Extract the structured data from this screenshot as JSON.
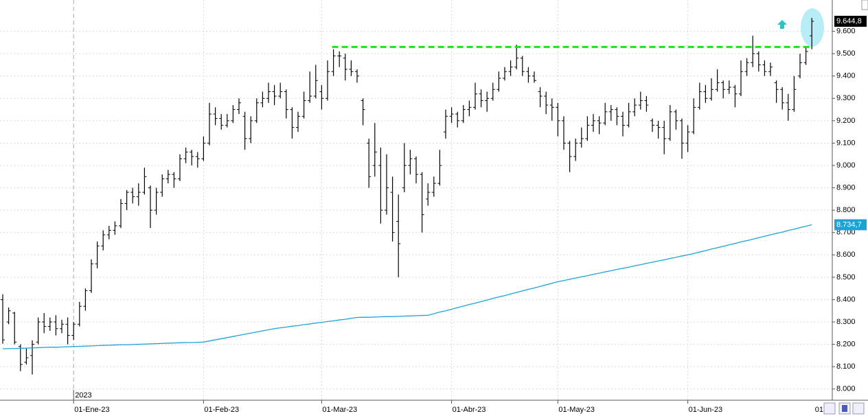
{
  "chart_data": {
    "type": "ohlc",
    "categories": [
      null,
      null,
      null,
      null,
      null,
      null,
      null,
      null,
      null,
      null,
      null,
      null,
      "01-Ene-23",
      null,
      null,
      null,
      null,
      null,
      null,
      null,
      null,
      null,
      null,
      null,
      null,
      null,
      null,
      null,
      null,
      null,
      null,
      null,
      null,
      null,
      "01-Feb-23",
      null,
      null,
      null,
      null,
      null,
      null,
      null,
      null,
      null,
      null,
      null,
      null,
      null,
      null,
      null,
      null,
      null,
      null,
      null,
      "01-Mar-23",
      null,
      null,
      null,
      null,
      null,
      null,
      null,
      null,
      null,
      null,
      null,
      null,
      null,
      null,
      null,
      null,
      null,
      null,
      null,
      null,
      null,
      "01-Abr-23",
      null,
      null,
      null,
      null,
      null,
      null,
      null,
      null,
      null,
      null,
      null,
      null,
      null,
      null,
      null,
      null,
      null,
      "01-May-23",
      null,
      null,
      null,
      null,
      null,
      null,
      null,
      null,
      null,
      null,
      null,
      null,
      null,
      null,
      null,
      null,
      null,
      null,
      null,
      null,
      null,
      "01-Jun-23",
      null,
      null,
      null,
      null,
      null,
      null,
      null,
      null,
      null,
      null,
      null,
      null,
      null,
      null,
      null,
      null,
      null,
      null,
      null,
      null,
      null
    ],
    "series": [
      {
        "type": "ohlc",
        "color": "#000000",
        "last_label": "9.644,8",
        "values": [
          [
            8400,
            8424,
            8203,
            8220
          ],
          [
            8300,
            8365,
            8290,
            8350
          ],
          [
            8340,
            8345,
            8200,
            8210
          ],
          [
            8190,
            8200,
            8080,
            8110
          ],
          [
            8120,
            8185,
            8110,
            8140
          ],
          [
            8150,
            8218,
            8065,
            8200
          ],
          [
            8210,
            8320,
            8200,
            8300
          ],
          [
            8300,
            8340,
            8250,
            8280
          ],
          [
            8280,
            8320,
            8260,
            8300
          ],
          [
            8300,
            8330,
            8240,
            8270
          ],
          [
            8270,
            8310,
            8250,
            8290
          ],
          [
            8290,
            8320,
            8200,
            8240
          ],
          [
            8240,
            8300,
            8220,
            8290
          ],
          [
            8290,
            8390,
            8280,
            8370
          ],
          [
            8370,
            8450,
            8350,
            8440
          ],
          [
            8440,
            8580,
            8430,
            8560
          ],
          [
            8560,
            8660,
            8540,
            8640
          ],
          [
            8640,
            8710,
            8620,
            8690
          ],
          [
            8690,
            8730,
            8670,
            8710
          ],
          [
            8710,
            8750,
            8690,
            8730
          ],
          [
            8730,
            8850,
            8720,
            8830
          ],
          [
            8830,
            8890,
            8800,
            8880
          ],
          [
            8880,
            8900,
            8830,
            8860
          ],
          [
            8860,
            8920,
            8820,
            8880
          ],
          [
            8880,
            8990,
            8870,
            8950
          ],
          [
            8900,
            8910,
            8720,
            8800
          ],
          [
            8800,
            8900,
            8780,
            8880
          ],
          [
            8880,
            8960,
            8860,
            8940
          ],
          [
            8940,
            8980,
            8920,
            8960
          ],
          [
            8960,
            8970,
            8900,
            8940
          ],
          [
            8940,
            9050,
            8930,
            9030
          ],
          [
            9030,
            9080,
            9010,
            9060
          ],
          [
            9060,
            9070,
            9000,
            9040
          ],
          [
            9040,
            9060,
            8990,
            9030
          ],
          [
            9030,
            9130,
            9020,
            9100
          ],
          [
            9100,
            9280,
            9090,
            9230
          ],
          [
            9230,
            9260,
            9180,
            9210
          ],
          [
            9210,
            9230,
            9160,
            9180
          ],
          [
            9180,
            9230,
            9170,
            9200
          ],
          [
            9200,
            9270,
            9190,
            9250
          ],
          [
            9250,
            9300,
            9230,
            9280
          ],
          [
            9220,
            9240,
            9070,
            9120
          ],
          [
            9120,
            9220,
            9100,
            9200
          ],
          [
            9200,
            9300,
            9190,
            9280
          ],
          [
            9280,
            9330,
            9260,
            9300
          ],
          [
            9300,
            9370,
            9280,
            9330
          ],
          [
            9330,
            9360,
            9270,
            9310
          ],
          [
            9310,
            9370,
            9300,
            9330
          ],
          [
            9330,
            9340,
            9210,
            9250
          ],
          [
            9250,
            9260,
            9120,
            9170
          ],
          [
            9170,
            9240,
            9150,
            9220
          ],
          [
            9220,
            9330,
            9210,
            9290
          ],
          [
            9290,
            9420,
            9280,
            9310
          ],
          [
            9310,
            9450,
            9300,
            9380
          ],
          [
            9330,
            9360,
            9250,
            9300
          ],
          [
            9300,
            9470,
            9290,
            9420
          ],
          [
            9420,
            9520,
            9400,
            9490
          ],
          [
            9490,
            9510,
            9440,
            9490
          ],
          [
            9480,
            9500,
            9380,
            9430
          ],
          [
            9430,
            9470,
            9400,
            9420
          ],
          [
            9420,
            9430,
            9370,
            9400
          ],
          [
            9290,
            9300,
            9180,
            9250
          ],
          [
            9100,
            9120,
            8900,
            8950
          ],
          [
            9000,
            9190,
            8950,
            9060
          ],
          [
            9000,
            9080,
            8740,
            8800
          ],
          [
            8800,
            9050,
            8780,
            8900
          ],
          [
            8880,
            8950,
            8660,
            8700
          ],
          [
            8750,
            8870,
            8500,
            8650
          ],
          [
            8900,
            9100,
            8880,
            9000
          ],
          [
            9000,
            9070,
            8960,
            9030
          ],
          [
            9030,
            9040,
            8920,
            8960
          ],
          [
            8960,
            8970,
            8700,
            8780
          ],
          [
            8850,
            8920,
            8820,
            8880
          ],
          [
            8880,
            8950,
            8860,
            8920
          ],
          [
            8920,
            9070,
            8910,
            9000
          ],
          [
            9150,
            9250,
            9120,
            9220
          ],
          [
            9220,
            9260,
            9190,
            9230
          ],
          [
            9230,
            9240,
            9170,
            9200
          ],
          [
            9200,
            9270,
            9190,
            9250
          ],
          [
            9250,
            9290,
            9220,
            9260
          ],
          [
            9260,
            9370,
            9250,
            9320
          ],
          [
            9320,
            9340,
            9260,
            9290
          ],
          [
            9290,
            9330,
            9240,
            9300
          ],
          [
            9300,
            9370,
            9290,
            9340
          ],
          [
            9340,
            9420,
            9330,
            9390
          ],
          [
            9390,
            9440,
            9380,
            9420
          ],
          [
            9420,
            9470,
            9400,
            9440
          ],
          [
            9440,
            9540,
            9430,
            9480
          ],
          [
            9480,
            9490,
            9400,
            9420
          ],
          [
            9420,
            9440,
            9370,
            9400
          ],
          [
            9400,
            9420,
            9370,
            9380
          ],
          [
            9330,
            9350,
            9260,
            9310
          ],
          [
            9310,
            9330,
            9230,
            9270
          ],
          [
            9270,
            9300,
            9200,
            9260
          ],
          [
            9260,
            9280,
            9130,
            9200
          ],
          [
            9200,
            9220,
            9070,
            9100
          ],
          [
            9100,
            9110,
            8970,
            9040
          ],
          [
            9040,
            9120,
            9020,
            9100
          ],
          [
            9100,
            9170,
            9080,
            9120
          ],
          [
            9120,
            9220,
            9110,
            9180
          ],
          [
            9180,
            9230,
            9150,
            9200
          ],
          [
            9200,
            9220,
            9140,
            9190
          ],
          [
            9190,
            9280,
            9180,
            9240
          ],
          [
            9240,
            9270,
            9200,
            9250
          ],
          [
            9250,
            9260,
            9180,
            9220
          ],
          [
            9220,
            9240,
            9130,
            9180
          ],
          [
            9180,
            9280,
            9170,
            9240
          ],
          [
            9240,
            9300,
            9220,
            9270
          ],
          [
            9270,
            9330,
            9250,
            9290
          ],
          [
            9290,
            9310,
            9240,
            9270
          ],
          [
            9200,
            9210,
            9150,
            9180
          ],
          [
            9180,
            9200,
            9120,
            9170
          ],
          [
            9170,
            9200,
            9050,
            9120
          ],
          [
            9120,
            9270,
            9110,
            9240
          ],
          [
            9240,
            9250,
            9160,
            9200
          ],
          [
            9200,
            9210,
            9030,
            9100
          ],
          [
            9100,
            9180,
            9060,
            9150
          ],
          [
            9150,
            9300,
            9140,
            9260
          ],
          [
            9260,
            9370,
            9250,
            9330
          ],
          [
            9330,
            9360,
            9280,
            9300
          ],
          [
            9300,
            9390,
            9290,
            9340
          ],
          [
            9340,
            9430,
            9330,
            9370
          ],
          [
            9370,
            9380,
            9300,
            9340
          ],
          [
            9340,
            9380,
            9320,
            9350
          ],
          [
            9350,
            9360,
            9260,
            9320
          ],
          [
            9320,
            9470,
            9310,
            9420
          ],
          [
            9420,
            9480,
            9400,
            9460
          ],
          [
            9460,
            9580,
            9440,
            9500
          ],
          [
            9500,
            9510,
            9420,
            9450
          ],
          [
            9450,
            9470,
            9400,
            9420
          ],
          [
            9420,
            9460,
            9400,
            9440
          ],
          [
            9370,
            9380,
            9280,
            9340
          ],
          [
            9340,
            9350,
            9250,
            9280
          ],
          [
            9280,
            9320,
            9200,
            9250
          ],
          [
            9250,
            9400,
            9240,
            9340
          ],
          [
            9400,
            9500,
            9390,
            9460
          ],
          [
            9460,
            9530,
            9450,
            9510
          ],
          [
            9580,
            9660,
            9520,
            9644.8
          ]
        ]
      },
      {
        "type": "line",
        "color": "#1ba3d6",
        "last_label": "8.734,7",
        "values": [
          8180,
          8181,
          8181,
          8182,
          8183,
          8184,
          8185,
          8186,
          8187,
          8187,
          8188,
          8189,
          8190,
          8191,
          8192,
          8193,
          8194,
          8195,
          8196,
          8197,
          8198,
          8198,
          8199,
          8200,
          8201,
          8202,
          8203,
          8204,
          8205,
          8206,
          8207,
          8208,
          8208,
          8209,
          8210,
          8215,
          8220,
          8225,
          8230,
          8235,
          8240,
          8245,
          8250,
          8255,
          8260,
          8265,
          8270,
          8274,
          8277,
          8281,
          8284,
          8288,
          8291,
          8295,
          8298,
          8302,
          8305,
          8309,
          8312,
          8316,
          8320,
          8321,
          8321,
          8322,
          8323,
          8324,
          8324,
          8325,
          8326,
          8327,
          8328,
          8329,
          8330,
          8337,
          8344,
          8350,
          8357,
          8364,
          8371,
          8378,
          8384,
          8391,
          8398,
          8405,
          8412,
          8418,
          8425,
          8432,
          8439,
          8446,
          8452,
          8459,
          8466,
          8473,
          8480,
          8485,
          8491,
          8496,
          8502,
          8507,
          8513,
          8518,
          8524,
          8529,
          8535,
          8540,
          8545,
          8551,
          8556,
          8562,
          8567,
          8573,
          8578,
          8584,
          8589,
          8595,
          8600,
          8606,
          8613,
          8619,
          8626,
          8632,
          8638,
          8645,
          8651,
          8658,
          8664,
          8670,
          8677,
          8683,
          8690,
          8696,
          8702,
          8709,
          8715,
          8722,
          8728,
          8734.7
        ]
      }
    ],
    "ylim": [
      7950,
      9740
    ],
    "yticks": [
      {
        "value": 8000,
        "label": "8.000"
      },
      {
        "value": 8100,
        "label": "8.100"
      },
      {
        "value": 8200,
        "label": "8.200"
      },
      {
        "value": 8300,
        "label": "8.300"
      },
      {
        "value": 8400,
        "label": "8.400"
      },
      {
        "value": 8500,
        "label": "8.500"
      },
      {
        "value": 8600,
        "label": "8.600"
      },
      {
        "value": 8700,
        "label": "8.700"
      },
      {
        "value": 8800,
        "label": "8.800"
      },
      {
        "value": 8900,
        "label": "8.900"
      },
      {
        "value": 9000,
        "label": "9.000"
      },
      {
        "value": 9100,
        "label": "9.100"
      },
      {
        "value": 9200,
        "label": "9.200"
      },
      {
        "value": 9300,
        "label": "9.300"
      },
      {
        "value": 9400,
        "label": "9.400"
      },
      {
        "value": 9500,
        "label": "9.500"
      },
      {
        "value": 9600,
        "label": "9.600"
      }
    ],
    "grid": true,
    "year_label": "2023",
    "x_cut_label": "01",
    "hline": {
      "value": 9530,
      "color": "#22dd22"
    }
  }
}
